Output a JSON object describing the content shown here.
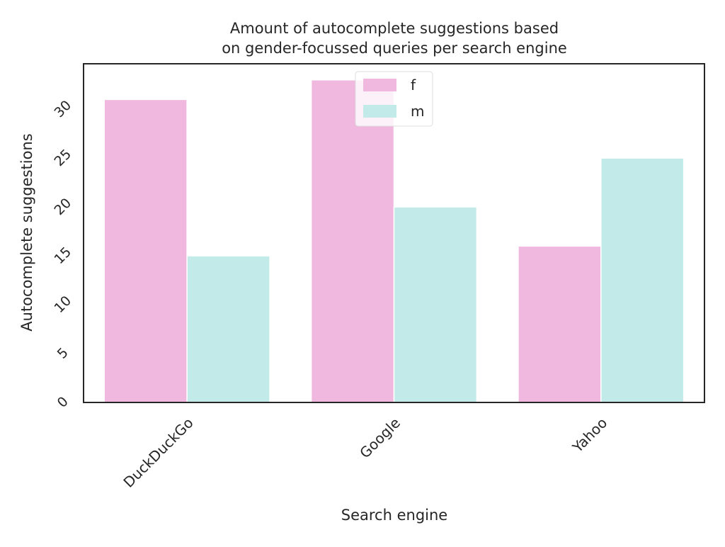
{
  "chart_data": {
    "type": "bar",
    "title_lines": [
      "Amount of autocomplete suggestions based",
      "on gender-focussed queries per search engine"
    ],
    "xlabel": "Search engine",
    "ylabel": "Autocomplete suggestions",
    "categories": [
      "DuckDuckGo",
      "Google",
      "Yahoo"
    ],
    "series": [
      {
        "name": "f",
        "values": [
          31,
          33,
          16
        ],
        "color": "#f0b8df"
      },
      {
        "name": "m",
        "values": [
          15,
          20,
          25
        ],
        "color": "#c2eae9"
      }
    ],
    "yticks": [
      "0",
      "5",
      "10",
      "15",
      "20",
      "25",
      "30"
    ],
    "ylim": [
      0,
      34.65
    ],
    "grid": false,
    "legend_position": "top-center"
  }
}
